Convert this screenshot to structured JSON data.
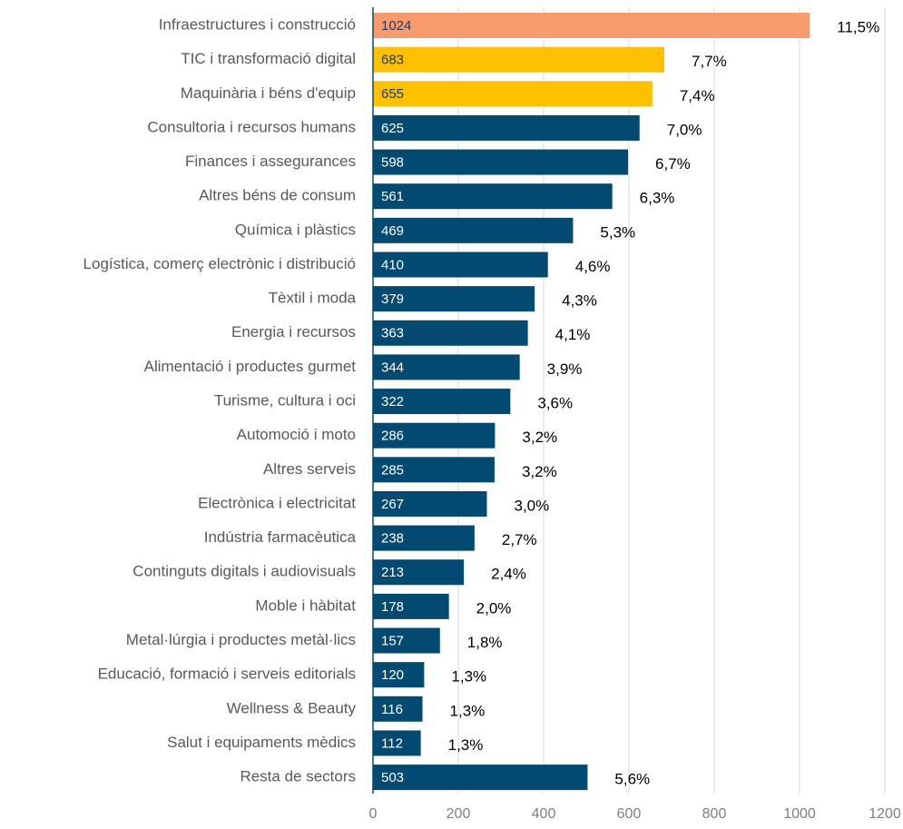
{
  "chart_data": {
    "type": "barh",
    "categories": [
      "Infraestructures i construcció",
      "TIC i transformació digital",
      "Maquinària i béns d'equip",
      "Consultoria i recursos humans",
      "Finances i assegurances",
      "Altres béns de consum",
      "Química i plàstics",
      "Logística, comerç electrònic i distribució",
      "Tèxtil i moda",
      "Energia i recursos",
      "Alimentació i productes gurmet",
      "Turisme, cultura i oci",
      "Automoció i moto",
      "Altres serveis",
      "Electrònica i electricitat",
      "Indústria farmacèutica",
      "Continguts digitals i audiovisuals",
      "Moble i hàbitat",
      "Metal·lúrgia i productes metàl·lics",
      "Educació, formació i serveis editorials",
      "Wellness & Beauty",
      "Salut i equipaments mèdics",
      "Resta de sectors"
    ],
    "values": [
      1024,
      683,
      655,
      625,
      598,
      561,
      469,
      410,
      379,
      363,
      344,
      322,
      286,
      285,
      267,
      238,
      213,
      178,
      157,
      120,
      116,
      112,
      503
    ],
    "colors": [
      "#f89b6c",
      "#ffc000",
      "#ffc000",
      "#034a72",
      "#034a72",
      "#034a72",
      "#034a72",
      "#034a72",
      "#034a72",
      "#034a72",
      "#034a72",
      "#034a72",
      "#034a72",
      "#034a72",
      "#034a72",
      "#034a72",
      "#034a72",
      "#034a72",
      "#034a72",
      "#034a72",
      "#034a72",
      "#034a72",
      "#034a72"
    ],
    "shares": [
      11.5,
      7.7,
      7.4,
      7.0,
      6.7,
      6.3,
      5.3,
      4.6,
      4.3,
      4.1,
      3.9,
      3.6,
      3.2,
      3.2,
      3.0,
      2.7,
      2.4,
      2.0,
      1.8,
      1.3,
      1.3,
      1.3,
      5.6
    ],
    "share_labels": [
      "11,5%",
      "7,7%",
      "7,4%",
      "7,0%",
      "6,7%",
      "6,3%",
      "5,3%",
      "4,6%",
      "4,3%",
      "4,1%",
      "3,9%",
      "3,6%",
      "3,2%",
      "3,2%",
      "3,0%",
      "2,7%",
      "2,4%",
      "2,0%",
      "1,8%",
      "1,3%",
      "1,3%",
      "1,3%",
      "5,6%"
    ],
    "xlim": [
      0,
      1200
    ],
    "xticks": [
      0,
      200,
      400,
      600,
      800,
      1000,
      1200
    ],
    "grid": true
  }
}
